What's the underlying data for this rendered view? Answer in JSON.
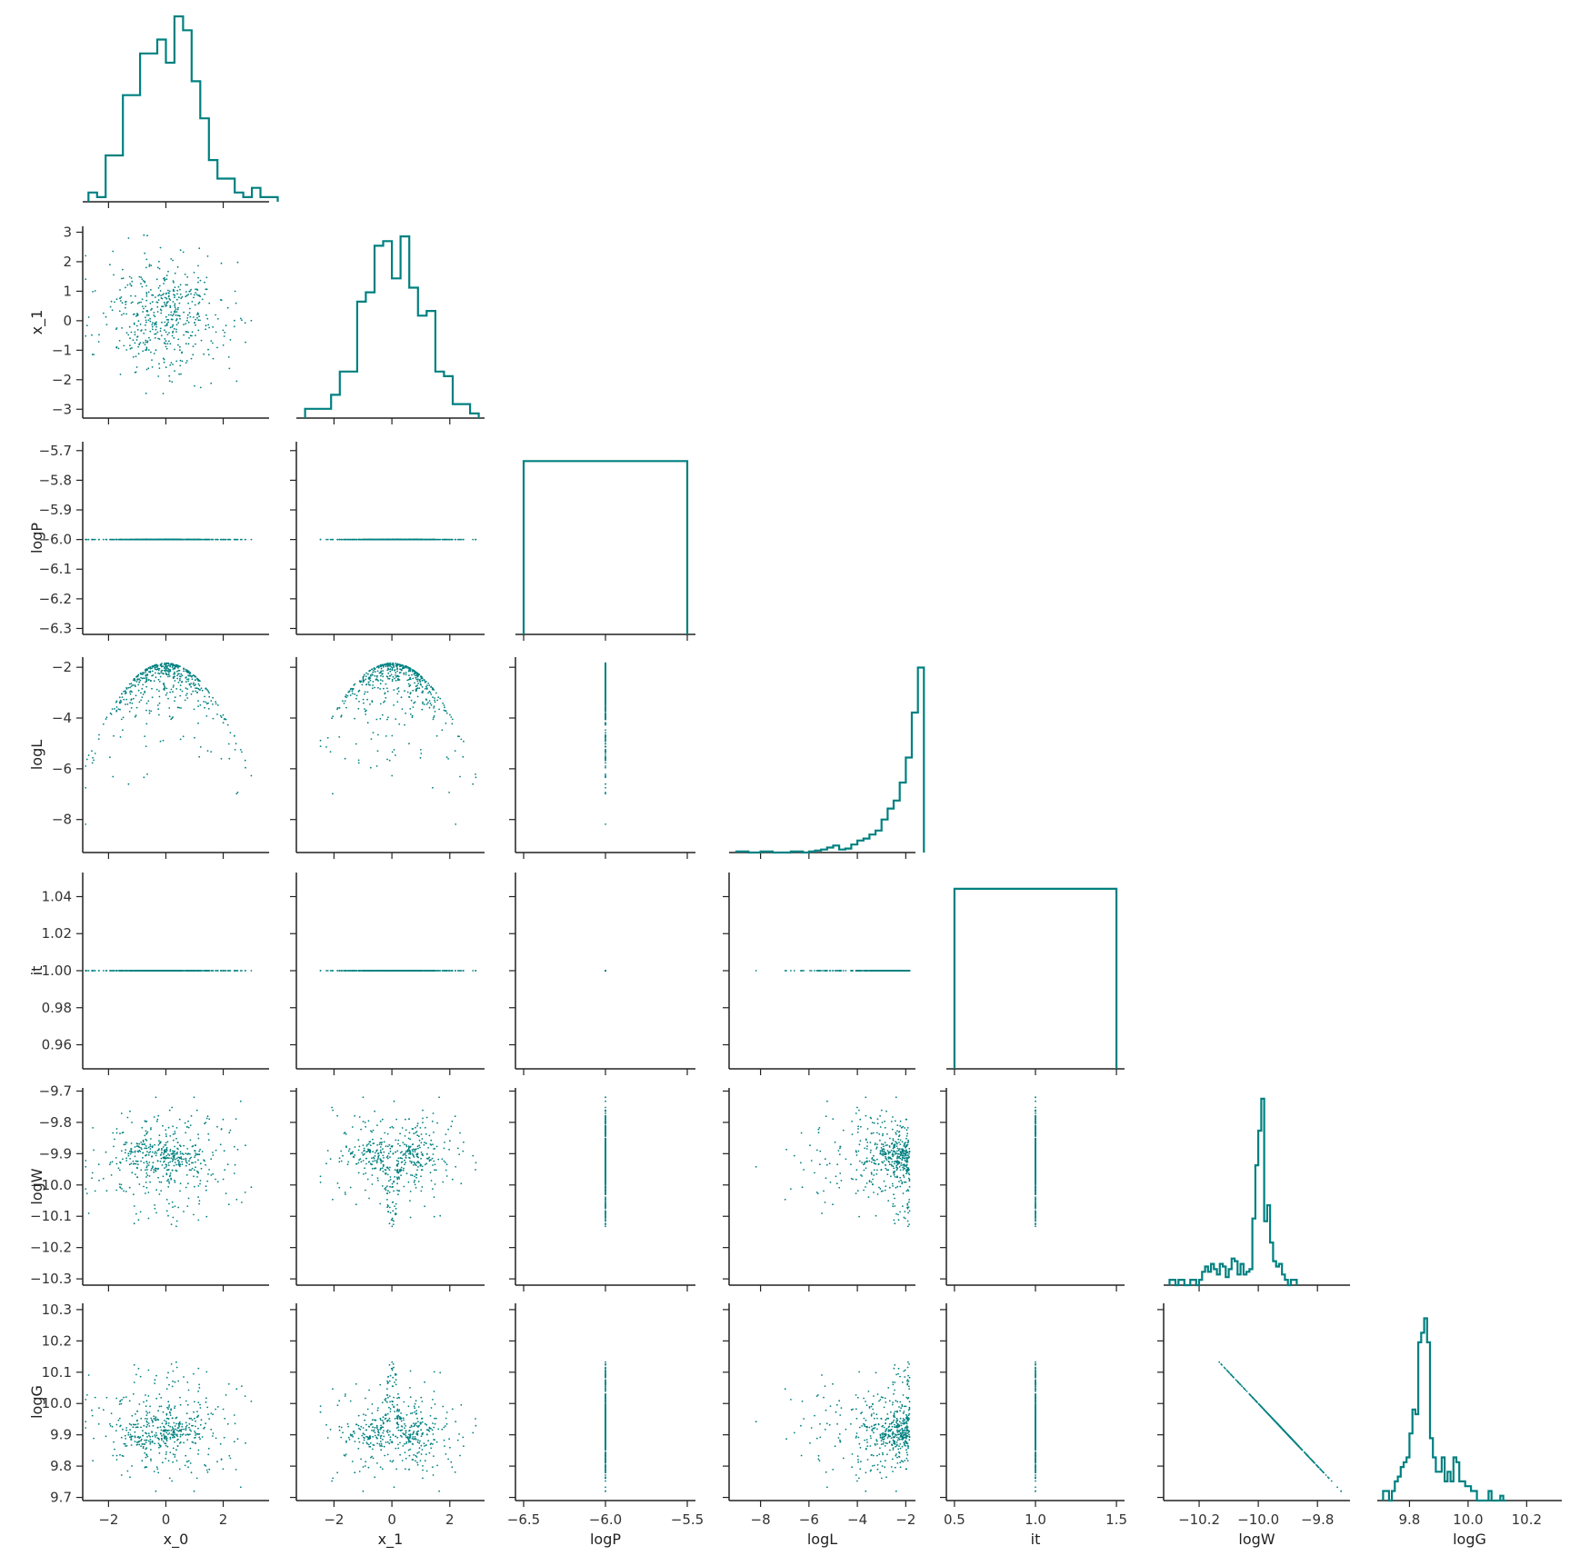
{
  "chart_data": {
    "type": "scatter",
    "title": "",
    "grid": false,
    "legend": "none",
    "layout": "corner",
    "color": "#008080",
    "variables": [
      {
        "name": "x_0",
        "range": [
          -2.9,
          3.6
        ],
        "ticks": [
          -2,
          0,
          2
        ],
        "tick_labels": [
          "−2",
          "0",
          "2"
        ]
      },
      {
        "name": "x_1",
        "range": [
          -3.3,
          3.2
        ],
        "ticks": [
          -3,
          -2,
          -1,
          0,
          1,
          2,
          3
        ],
        "tick_labels": [
          "−3",
          "−2",
          "−1",
          "0",
          "1",
          "2",
          "3"
        ],
        "x_ticks": [
          -2,
          0,
          2
        ],
        "x_tick_labels": [
          "−2",
          "0",
          "2"
        ]
      },
      {
        "name": "logP",
        "range": [
          -6.55,
          -5.45
        ],
        "y_range": [
          -6.32,
          -5.67
        ],
        "ticks": [
          -6.5,
          -6.0,
          -5.5
        ],
        "tick_labels": [
          "−6.5",
          "−6.0",
          "−5.5"
        ],
        "y_ticks": [
          -6.3,
          -6.2,
          -6.1,
          -6.0,
          -5.9,
          -5.8,
          -5.7
        ],
        "y_tick_labels": [
          "−6.3",
          "−6.2",
          "−6.1",
          "−6.0",
          "−5.9",
          "−5.8",
          "−5.7"
        ]
      },
      {
        "name": "logL",
        "range": [
          -9.3,
          -1.6
        ],
        "ticks": [
          -8,
          -6,
          -4,
          -2
        ],
        "tick_labels": [
          "−8",
          "−6",
          "−4",
          "−2"
        ]
      },
      {
        "name": "it",
        "range": [
          0.45,
          1.55
        ],
        "y_range": [
          0.947,
          1.053
        ],
        "ticks": [
          0.5,
          1.0,
          1.5
        ],
        "tick_labels": [
          "0.5",
          "1.0",
          "1.5"
        ],
        "y_ticks": [
          0.96,
          0.98,
          1.0,
          1.02,
          1.04
        ],
        "y_tick_labels": [
          "0.96",
          "0.98",
          "1.00",
          "1.02",
          "1.04"
        ]
      },
      {
        "name": "logW",
        "range": [
          -10.32,
          -9.69
        ],
        "ticks": [
          -10.2,
          -10.0,
          -9.8
        ],
        "tick_labels": [
          "−10.2",
          "−10.0",
          "−9.8"
        ],
        "y_ticks": [
          -10.3,
          -10.2,
          -10.1,
          -10.0,
          -9.9,
          -9.8,
          -9.7
        ],
        "y_tick_labels": [
          "−10.3",
          "−10.2",
          "−10.1",
          "−10.0",
          "−9.9",
          "−9.8",
          "−9.7"
        ]
      },
      {
        "name": "logG",
        "range": [
          9.69,
          10.32
        ],
        "ticks": [
          9.8,
          10.0,
          10.2
        ],
        "tick_labels": [
          "9.8",
          "10.0",
          "10.2"
        ],
        "y_ticks": [
          9.7,
          9.8,
          9.9,
          10.0,
          10.1,
          10.2,
          10.3
        ],
        "y_tick_labels": [
          "9.7",
          "9.8",
          "9.9",
          "10.0",
          "10.1",
          "10.2",
          "10.3"
        ]
      }
    ],
    "histograms": [
      {
        "variable": "x_0",
        "bin_start": -2.7,
        "bin_width": 0.3,
        "counts": [
          2,
          1,
          10,
          10,
          23,
          23,
          32,
          32,
          35,
          30,
          40,
          37,
          26,
          18,
          9,
          5,
          5,
          2,
          1,
          3,
          1,
          1
        ],
        "ymax": 40
      },
      {
        "variable": "x_1",
        "bin_start": -3.0,
        "bin_width": 0.3,
        "counts": [
          2,
          2,
          2,
          5,
          10,
          10,
          25,
          27,
          37,
          38,
          30,
          39,
          28,
          22,
          23,
          10,
          9,
          3,
          3,
          1
        ],
        "ymax": 40
      },
      {
        "variable": "logP",
        "bins": [
          [
            -6.5,
            -5.5,
            1.0
          ]
        ],
        "ymax": 1.08
      },
      {
        "variable": "logL",
        "bin_start": -9.0,
        "bin_width": 0.25,
        "counts": [
          1,
          1,
          0,
          0,
          1,
          1,
          0,
          0,
          0,
          1,
          1,
          0,
          1,
          2,
          3,
          5,
          7,
          3,
          4,
          8,
          12,
          14,
          18,
          22,
          33,
          44,
          52,
          70,
          95,
          140,
          185
        ],
        "ymax": 190
      },
      {
        "variable": "it",
        "bins": [
          [
            0.5,
            1.5,
            1.0
          ]
        ],
        "ymax": 1.06
      },
      {
        "variable": "logW",
        "bin_start": -10.3,
        "bin_width": 0.01,
        "counts": [
          2,
          2,
          0,
          2,
          2,
          0,
          0,
          2,
          2,
          0,
          2,
          5,
          7,
          5,
          8,
          6,
          4,
          8,
          7,
          3,
          6,
          10,
          9,
          4,
          8,
          4,
          5,
          6,
          25,
          45,
          58,
          70,
          24,
          30,
          16,
          9,
          7,
          8,
          4,
          2,
          0,
          2,
          2
        ],
        "ymax": 72
      },
      {
        "variable": "logG",
        "bin_start": 9.71,
        "bin_width": 0.01,
        "counts": [
          2,
          2,
          0,
          2,
          4,
          5,
          7,
          8,
          9,
          14,
          19,
          18,
          33,
          35,
          38,
          33,
          13,
          9,
          6,
          6,
          9,
          4,
          6,
          4,
          9,
          8,
          4,
          4,
          3,
          3,
          2,
          2,
          0,
          0,
          0,
          0,
          2,
          0,
          0,
          0,
          1,
          0
        ],
        "ymax": 40
      }
    ],
    "points_note": "",
    "num_points": 500
  }
}
